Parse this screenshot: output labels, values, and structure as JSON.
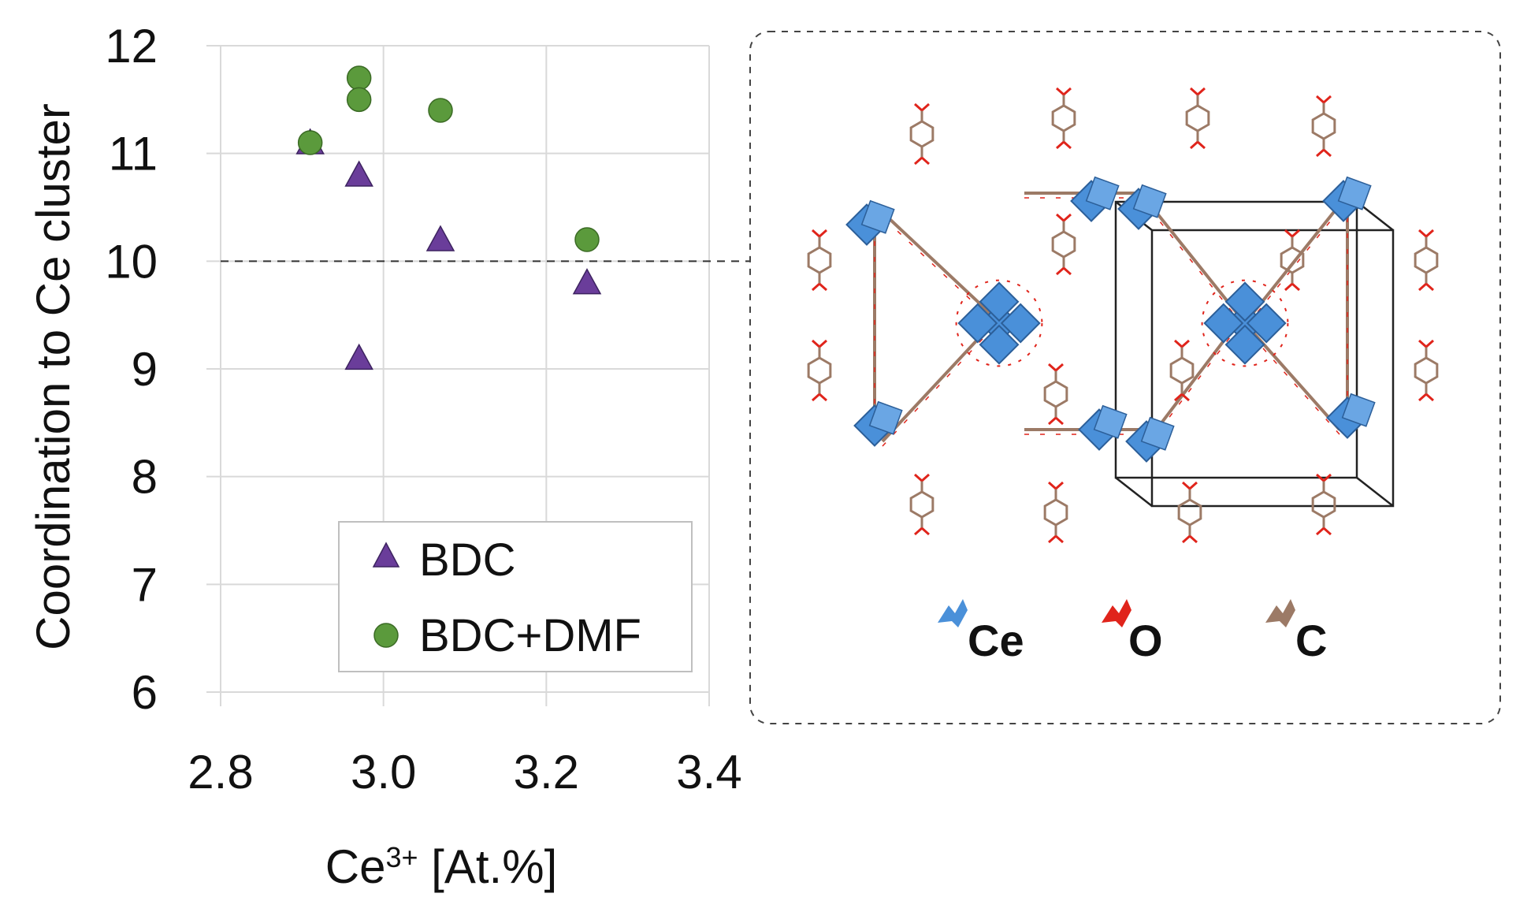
{
  "chart_data": {
    "type": "scatter",
    "xlabel_main": "Ce",
    "xlabel_sup": "3+",
    "xlabel_rest": " [At.%]",
    "ylabel": "Coordination to Ce cluster",
    "xlim": [
      2.8,
      3.4
    ],
    "ylim": [
      6,
      12
    ],
    "x_ticks": [
      "2.8",
      "3.0",
      "3.2",
      "3.4"
    ],
    "x_tick_values": [
      2.8,
      3.0,
      3.2,
      3.4
    ],
    "y_ticks": [
      "6",
      "7",
      "8",
      "9",
      "10",
      "11",
      "12"
    ],
    "y_tick_values": [
      6,
      7,
      8,
      9,
      10,
      11,
      12
    ],
    "grid": true,
    "reference_line_y": 10,
    "legend_position": "bottom-right",
    "series": [
      {
        "name": "BDC",
        "marker": "triangle",
        "color": "#6a3d9a",
        "points": [
          {
            "x": 2.91,
            "y": 11.1
          },
          {
            "x": 2.97,
            "y": 10.8
          },
          {
            "x": 2.97,
            "y": 9.1
          },
          {
            "x": 3.07,
            "y": 10.2
          },
          {
            "x": 3.25,
            "y": 9.8
          }
        ]
      },
      {
        "name": "BDC+DMF",
        "marker": "circle",
        "color": "#5b9a3c",
        "points": [
          {
            "x": 2.91,
            "y": 11.1
          },
          {
            "x": 2.97,
            "y": 11.7
          },
          {
            "x": 2.97,
            "y": 11.5
          },
          {
            "x": 3.07,
            "y": 11.4
          },
          {
            "x": 3.25,
            "y": 10.2
          }
        ]
      }
    ]
  },
  "structure_legend": [
    {
      "symbol": "Ce",
      "color": "#4a90d9"
    },
    {
      "symbol": "O",
      "color": "#e0241b"
    },
    {
      "symbol": "C",
      "color": "#9c7a66"
    }
  ]
}
